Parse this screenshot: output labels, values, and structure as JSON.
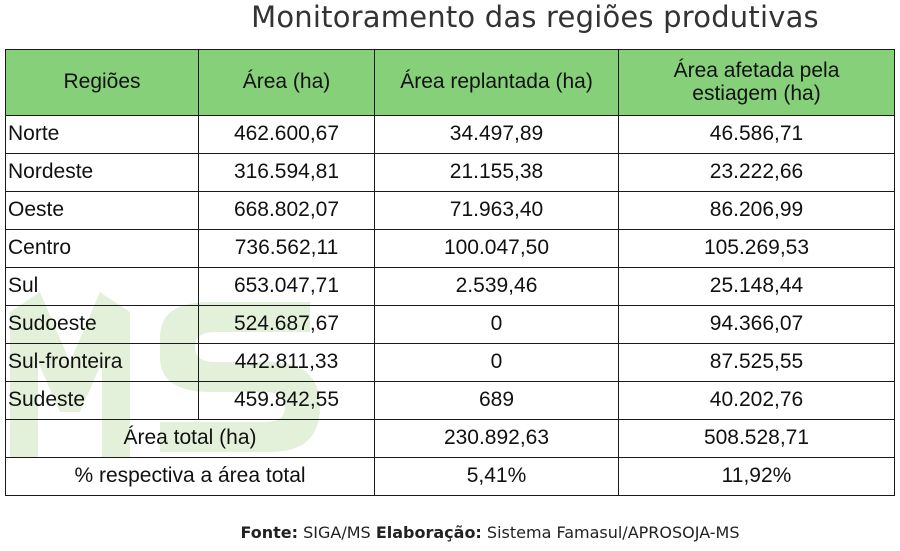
{
  "title": "Monitoramento das regiões produtivas",
  "headers": [
    "Regiões",
    "Área (ha)",
    "Área replantada (ha)",
    "Área afetada pela estiagem (ha)"
  ],
  "rows": [
    {
      "regiao": "Norte",
      "area": "462.600,67",
      "replantada": "34.497,89",
      "afetada": "46.586,71"
    },
    {
      "regiao": "Nordeste",
      "area": "316.594,81",
      "replantada": "21.155,38",
      "afetada": "23.222,66"
    },
    {
      "regiao": "Oeste",
      "area": "668.802,07",
      "replantada": "71.963,40",
      "afetada": "86.206,99"
    },
    {
      "regiao": "Centro",
      "area": "736.562,11",
      "replantada": "100.047,50",
      "afetada": "105.269,53"
    },
    {
      "regiao": "Sul",
      "area": "653.047,71",
      "replantada": "2.539,46",
      "afetada": "25.148,44"
    },
    {
      "regiao": "Sudoeste",
      "area": "524.687,67",
      "replantada": "0",
      "afetada": "94.366,07"
    },
    {
      "regiao": "Sul-fronteira",
      "area": "442.811,33",
      "replantada": "0",
      "afetada": "87.525,55"
    },
    {
      "regiao": "Sudeste",
      "area": "459.842,55",
      "replantada": "689",
      "afetada": "40.202,76"
    }
  ],
  "total": {
    "label": "Área total (ha)",
    "replantada": "230.892,63",
    "afetada": "508.528,71"
  },
  "percent": {
    "label": "% respectiva a área total",
    "replantada": "5,41%",
    "afetada": "11,92%"
  },
  "footer": {
    "fonte_label": "Fonte:",
    "fonte_value": "SIGA/MS",
    "elaboracao_label": "Elaboração:",
    "elaboracao_value": "Sistema Famasul/APROSOJA-MS"
  },
  "colors": {
    "header_bg": "#86d07a",
    "watermark": "#e6f2dc"
  }
}
